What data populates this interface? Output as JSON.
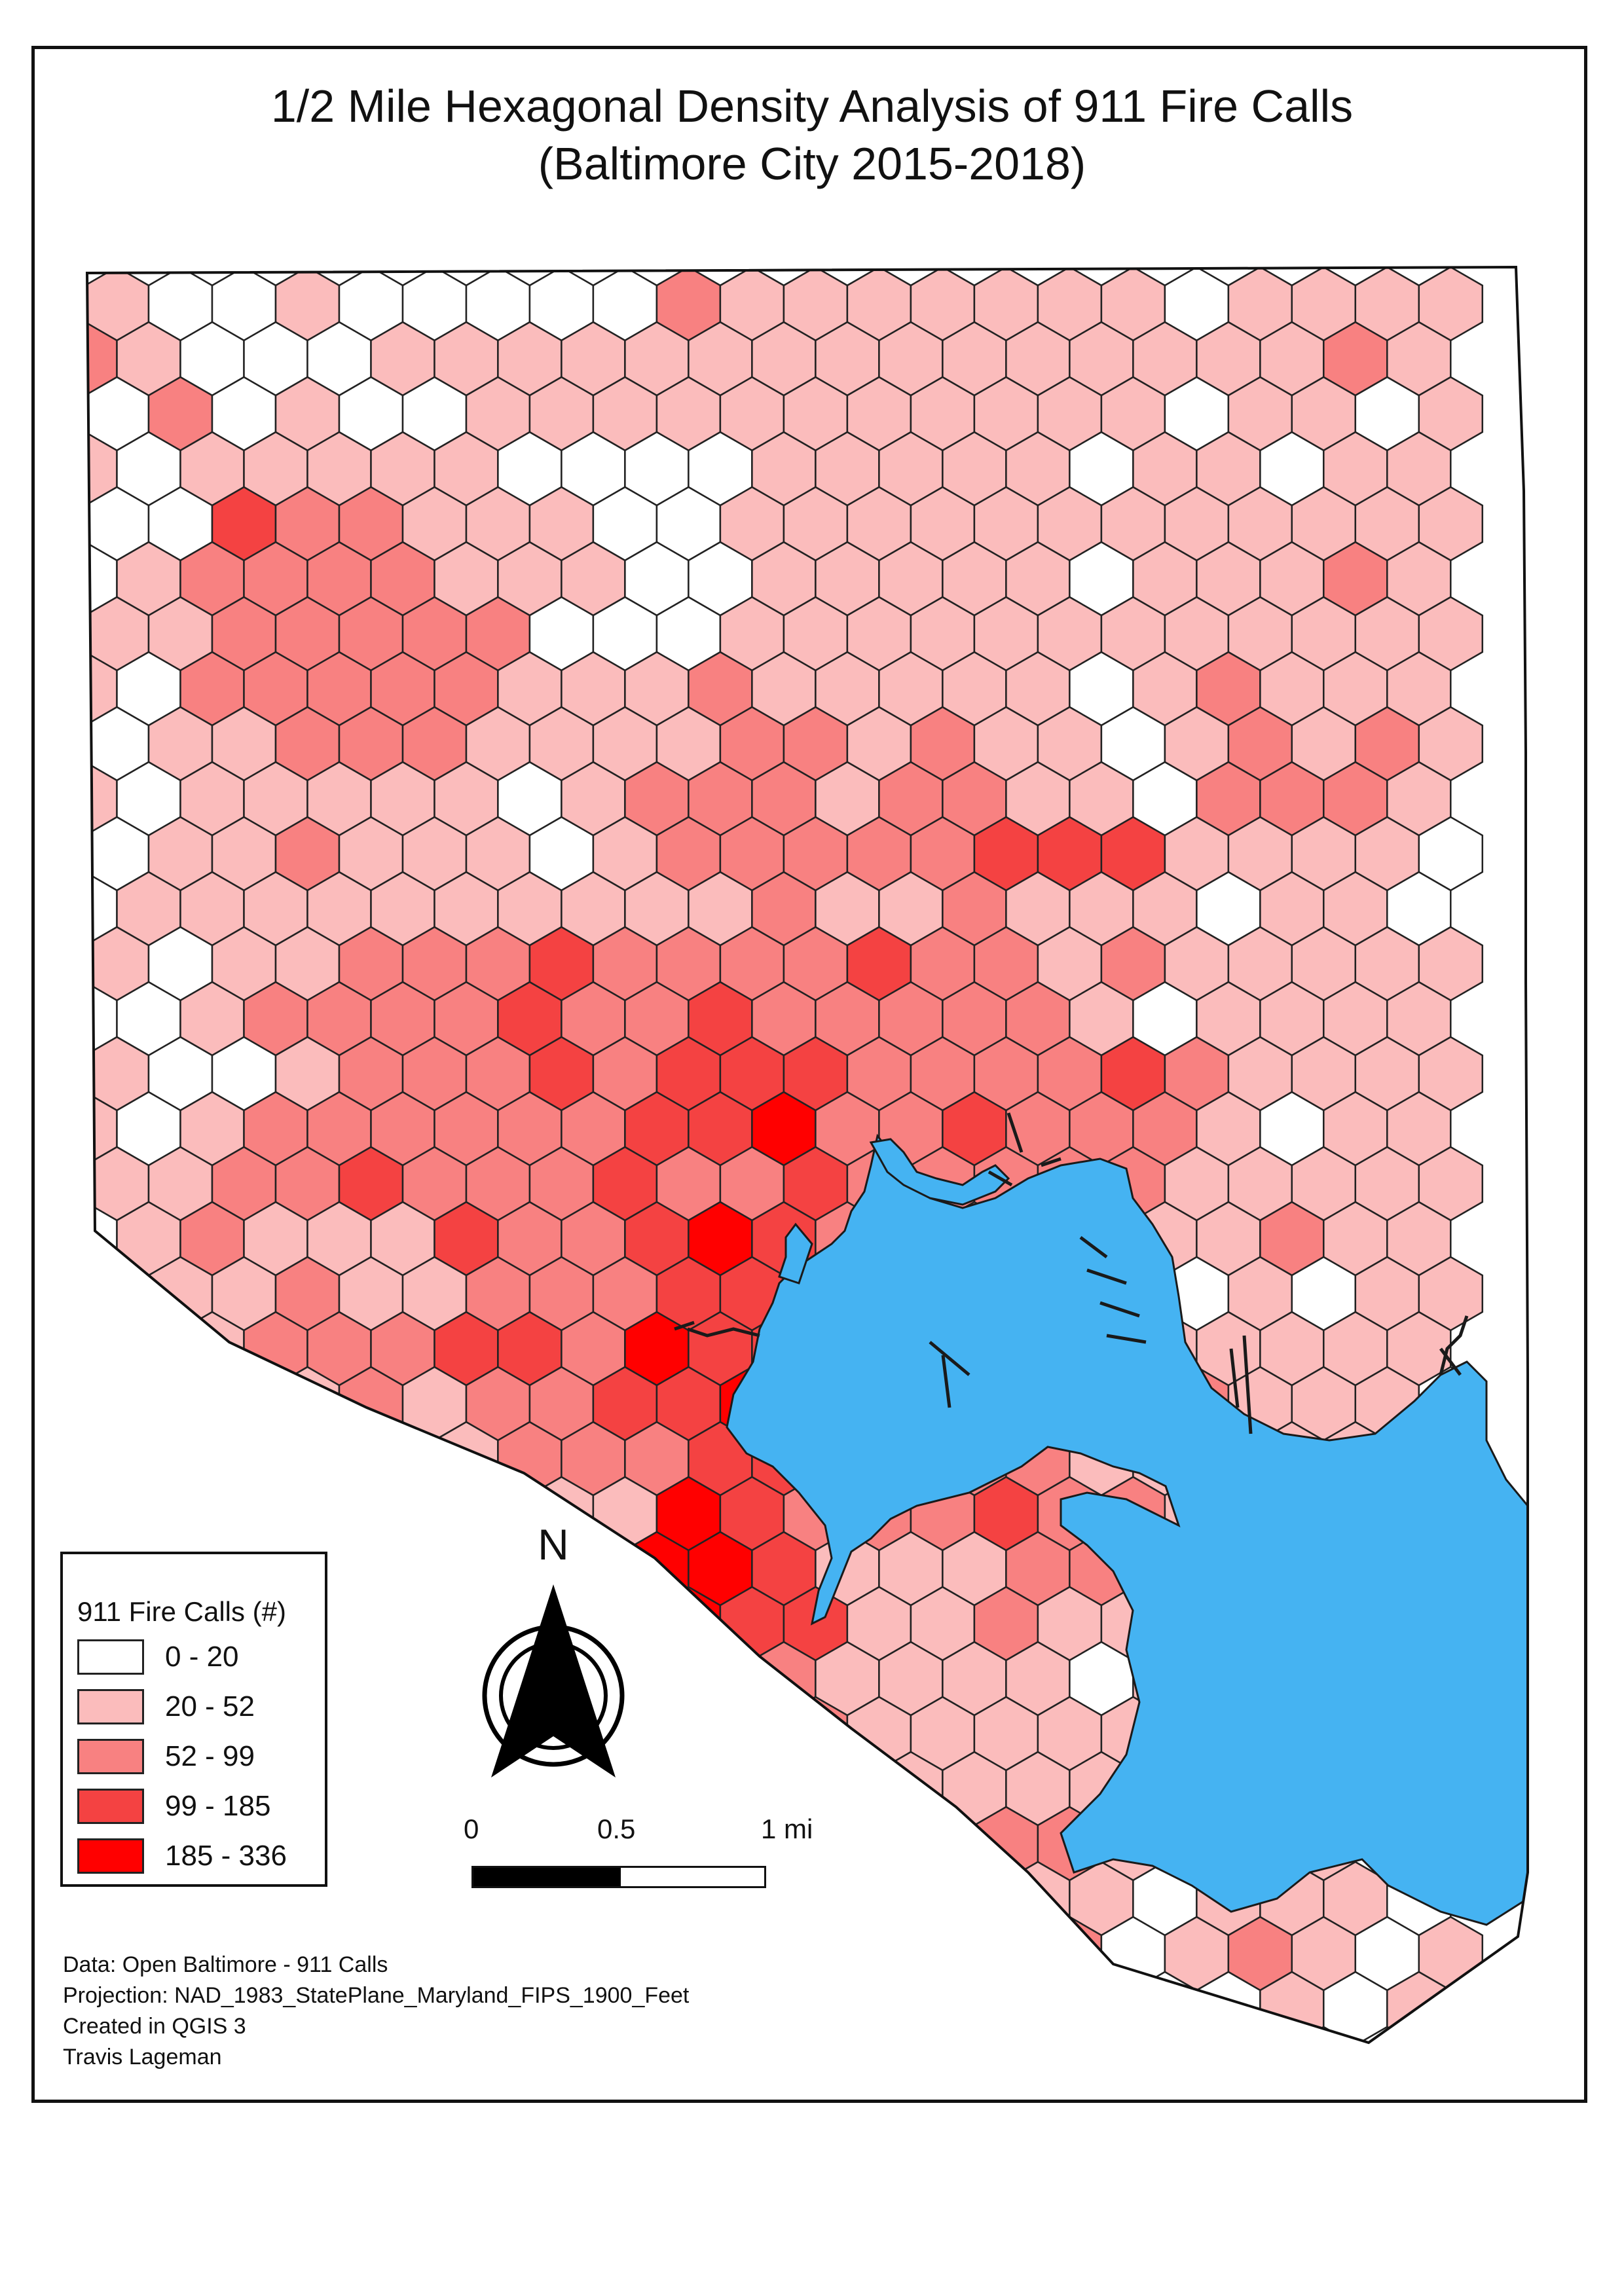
{
  "title": {
    "line1": "1/2 Mile Hexagonal Density Analysis of 911 Fire Calls",
    "line2": "(Baltimore City 2015-2018)"
  },
  "legend": {
    "title": "911 Fire Calls (#)",
    "classes": [
      {
        "label": "0 - 20",
        "color": "#ffffff"
      },
      {
        "label": "20 - 52",
        "color": "#fbbcbc"
      },
      {
        "label": "52 - 99",
        "color": "#f88181"
      },
      {
        "label": "99 - 185",
        "color": "#f44242"
      },
      {
        "label": "185 - 336",
        "color": "#ff0000"
      }
    ]
  },
  "north_arrow": {
    "label": "N"
  },
  "scale_bar": {
    "ticks": [
      "0",
      "0.5",
      "1 mi"
    ]
  },
  "credits": {
    "data": "Data: Open Baltimore - 911 Calls",
    "projection": "Projection: NAD_1983_StatePlane_Maryland_FIPS_1900_Feet",
    "software": "Created in QGIS 3",
    "author": "Travis Lageman"
  },
  "colors": {
    "water": "#45b3f2",
    "hex_outline": "#222222",
    "boundary": "#111111",
    "frame": "#111111"
  },
  "chart_data": {
    "type": "heatmap",
    "title": "1/2 Mile Hexagonal Density Analysis of 911 Fire Calls",
    "subtitle": "(Baltimore City 2015-2018)",
    "legend_title": "911 Fire Calls (#)",
    "class_breaks": [
      {
        "label": "0 - 20",
        "min": 0,
        "max": 20
      },
      {
        "label": "20 - 52",
        "min": 20,
        "max": 52
      },
      {
        "label": "52 - 99",
        "min": 52,
        "max": 99
      },
      {
        "label": "99 - 185",
        "min": 99,
        "max": 185
      },
      {
        "label": "185 - 336",
        "min": 185,
        "max": 336
      }
    ],
    "hex_classes": [
      "0000000000000000000000",
      "1001000002111111101111",
      "2100011111111111111121",
      "0201001111111111101101",
      "1011111000011111011011",
      "0032211100111111111111",
      "0122221110011111011121",
      "1122222000111111111111",
      "1022222111211111012111",
      "0112221111221211012121",
      "1011111012221221102221",
      "0112111012222233311110",
      "0111111111121121110110",
      "1011222322223221211111",
      "0012222322322222101111",
      "1001222323332222321111",
      "1012222223342232221011",
      "1122322232232222211111",
      "0121113223432221111211",
      "0112112223332232001011",
      "0112223324333222111111",
      "1121212233432233121110",
      "0112221222333222111111",
      "0111232114322232211010",
      "1021133124431112211111",
      "0110111214331121111111",
      "1120222214321111011011",
      "0111112101321111111110",
      "0101112101332111111111",
      "0111322112222222111101",
      "0101211212222221101110",
      "0111212200322102012101",
      "0110111212011010000101",
      "0110110210102021000101",
      "0101010011101121101101",
      "0000000110011012000101",
      "0000000012201100000110",
      "0000000000000000000000",
      "0000000000000000000000"
    ]
  }
}
